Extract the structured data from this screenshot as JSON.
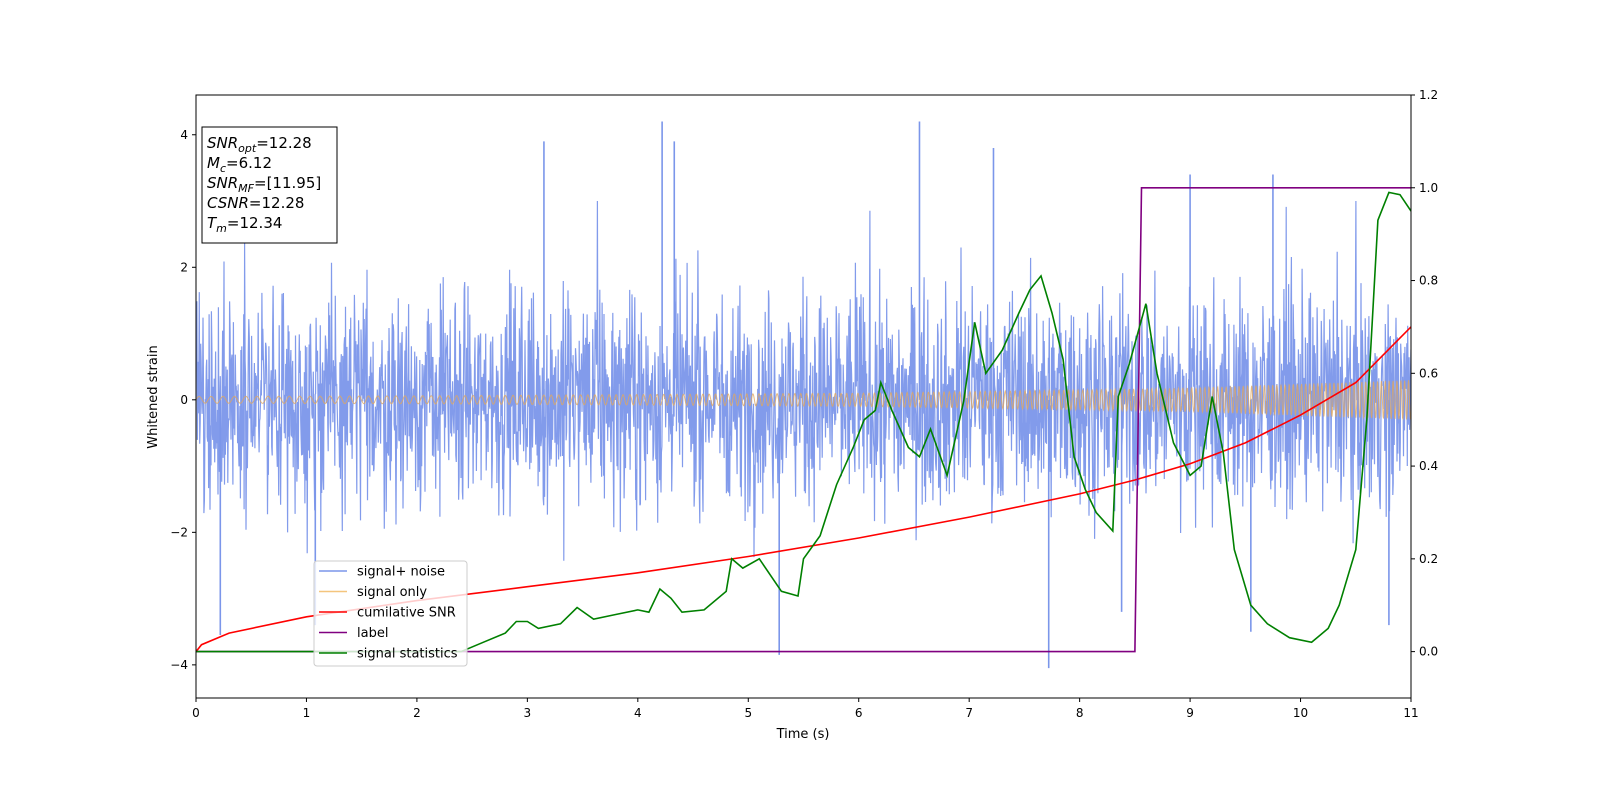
{
  "chart_data": {
    "type": "line",
    "title": "",
    "xlabel": "Time (s)",
    "ylabel": "Whitened strain",
    "xlim": [
      0,
      11
    ],
    "ylim": [
      -4.5,
      4.6
    ],
    "y2lim": [
      -0.1,
      1.2
    ],
    "xticks": [
      "0",
      "1",
      "2",
      "3",
      "4",
      "5",
      "6",
      "7",
      "8",
      "9",
      "10",
      "11"
    ],
    "yticks": [
      "4",
      "2",
      "0",
      "−2",
      "−4"
    ],
    "y2ticks": [
      "1.2",
      "1.0",
      "0.8",
      "0.6",
      "0.4",
      "0.2",
      "0.0"
    ],
    "grid": false,
    "legend_position": "lower-left",
    "info_box": {
      "position": "top-left",
      "lines": [
        {
          "name": "SNR",
          "sub": "opt",
          "value": "=12.28"
        },
        {
          "name": "M",
          "sub": "c",
          "value": "=6.12"
        },
        {
          "name": "SNR",
          "sub": "MF",
          "value": "=[11.95]"
        },
        {
          "name": "CSNR",
          "sub": "",
          "value": "=12.28"
        },
        {
          "name": "T",
          "sub": "m",
          "value": "=12.34"
        }
      ]
    },
    "series": [
      {
        "name": "signal+ noise",
        "color": "#7b96ea",
        "axis": "left",
        "description": "noise-dominated whitened strain, roughly within ±2 with spikes to about ±4",
        "amplitude_envelope": 2.0,
        "peak_spikes": [
          [
            0.22,
            -3.55
          ],
          [
            1.08,
            -3.4
          ],
          [
            3.15,
            3.9
          ],
          [
            4.22,
            4.2
          ],
          [
            4.33,
            3.9
          ],
          [
            5.28,
            -3.85
          ],
          [
            6.55,
            4.2
          ],
          [
            7.22,
            3.8
          ],
          [
            7.72,
            -4.05
          ],
          [
            8.38,
            -3.2
          ],
          [
            9.0,
            3.4
          ],
          [
            9.55,
            -3.5
          ],
          [
            9.75,
            3.4
          ],
          [
            10.8,
            -3.4
          ]
        ]
      },
      {
        "name": "signal only",
        "color": "#f4c57d",
        "axis": "left",
        "description": "chirp waveform with amplitude growing from about 0.05 to about 0.3",
        "amplitude": [
          [
            0,
            0.05
          ],
          [
            2,
            0.06
          ],
          [
            4,
            0.08
          ],
          [
            6,
            0.1
          ],
          [
            8,
            0.15
          ],
          [
            9,
            0.18
          ],
          [
            10,
            0.24
          ],
          [
            11,
            0.3
          ]
        ]
      },
      {
        "name": "cumilative SNR",
        "color": "#ff0000",
        "axis": "right",
        "points": [
          [
            0,
            0.0
          ],
          [
            0.05,
            0.015
          ],
          [
            0.3,
            0.04
          ],
          [
            1,
            0.075
          ],
          [
            2,
            0.11
          ],
          [
            3,
            0.14
          ],
          [
            4,
            0.17
          ],
          [
            5,
            0.205
          ],
          [
            6,
            0.245
          ],
          [
            7,
            0.29
          ],
          [
            8,
            0.34
          ],
          [
            8.5,
            0.37
          ],
          [
            9,
            0.405
          ],
          [
            9.5,
            0.45
          ],
          [
            10,
            0.51
          ],
          [
            10.5,
            0.58
          ],
          [
            11,
            0.7
          ]
        ]
      },
      {
        "name": "label",
        "color": "#800080",
        "axis": "right",
        "points": [
          [
            0,
            0.0
          ],
          [
            8.5,
            0.0
          ],
          [
            8.56,
            1.0
          ],
          [
            11,
            1.0
          ]
        ]
      },
      {
        "name": "signal statistics",
        "color": "#008000",
        "axis": "right",
        "points": [
          [
            0,
            0.0
          ],
          [
            2.4,
            0.0
          ],
          [
            2.6,
            0.02
          ],
          [
            2.8,
            0.04
          ],
          [
            2.9,
            0.065
          ],
          [
            3.0,
            0.065
          ],
          [
            3.1,
            0.05
          ],
          [
            3.3,
            0.06
          ],
          [
            3.45,
            0.095
          ],
          [
            3.6,
            0.07
          ],
          [
            3.8,
            0.08
          ],
          [
            4.0,
            0.09
          ],
          [
            4.1,
            0.085
          ],
          [
            4.2,
            0.135
          ],
          [
            4.3,
            0.115
          ],
          [
            4.4,
            0.085
          ],
          [
            4.6,
            0.09
          ],
          [
            4.8,
            0.13
          ],
          [
            4.85,
            0.2
          ],
          [
            4.95,
            0.18
          ],
          [
            5.1,
            0.2
          ],
          [
            5.3,
            0.13
          ],
          [
            5.45,
            0.12
          ],
          [
            5.5,
            0.2
          ],
          [
            5.65,
            0.25
          ],
          [
            5.8,
            0.36
          ],
          [
            5.95,
            0.44
          ],
          [
            6.05,
            0.5
          ],
          [
            6.15,
            0.52
          ],
          [
            6.2,
            0.58
          ],
          [
            6.3,
            0.52
          ],
          [
            6.45,
            0.44
          ],
          [
            6.55,
            0.42
          ],
          [
            6.65,
            0.48
          ],
          [
            6.8,
            0.38
          ],
          [
            6.95,
            0.54
          ],
          [
            7.05,
            0.71
          ],
          [
            7.15,
            0.6
          ],
          [
            7.3,
            0.65
          ],
          [
            7.45,
            0.73
          ],
          [
            7.55,
            0.78
          ],
          [
            7.65,
            0.81
          ],
          [
            7.75,
            0.73
          ],
          [
            7.85,
            0.63
          ],
          [
            7.95,
            0.42
          ],
          [
            8.05,
            0.35
          ],
          [
            8.15,
            0.3
          ],
          [
            8.3,
            0.26
          ],
          [
            8.35,
            0.55
          ],
          [
            8.45,
            0.62
          ],
          [
            8.6,
            0.75
          ],
          [
            8.7,
            0.6
          ],
          [
            8.85,
            0.45
          ],
          [
            9.0,
            0.38
          ],
          [
            9.1,
            0.4
          ],
          [
            9.2,
            0.55
          ],
          [
            9.3,
            0.43
          ],
          [
            9.4,
            0.22
          ],
          [
            9.55,
            0.1
          ],
          [
            9.7,
            0.06
          ],
          [
            9.9,
            0.03
          ],
          [
            10.1,
            0.02
          ],
          [
            10.25,
            0.05
          ],
          [
            10.35,
            0.1
          ],
          [
            10.5,
            0.22
          ],
          [
            10.6,
            0.5
          ],
          [
            10.7,
            0.93
          ],
          [
            10.8,
            0.99
          ],
          [
            10.9,
            0.985
          ],
          [
            11,
            0.95
          ]
        ]
      }
    ]
  }
}
